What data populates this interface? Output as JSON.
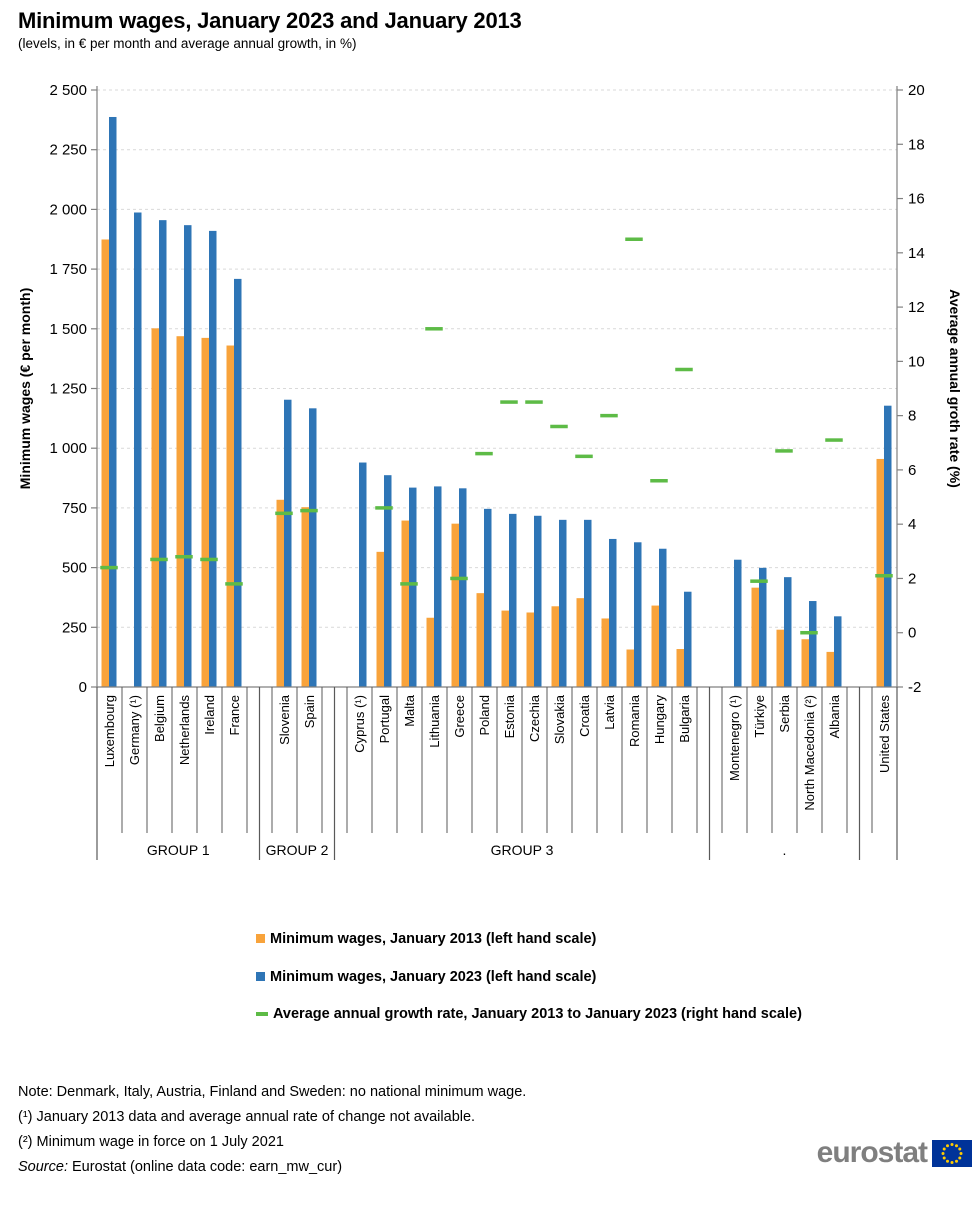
{
  "header": {
    "title": "Minimum wages, January 2023 and January 2013",
    "subtitle": "(levels, in € per month and average annual growth, in %)"
  },
  "chart_data": {
    "type": "bar",
    "title": "Minimum wages, January 2023 and January 2013",
    "left_axis": {
      "label": "Minimum wages (€ per month)",
      "min": 0,
      "max": 2500,
      "step": 250,
      "tick_labels": [
        "0",
        "250",
        "500",
        "750",
        "1 000",
        "1 250",
        "1 500",
        "1 750",
        "2 000",
        "2 250",
        "2 500"
      ]
    },
    "right_axis": {
      "label": "Average annual groth rate (%)",
      "min": -2,
      "max": 20,
      "step": 2
    },
    "grid": "dashed",
    "legend_position": "bottom",
    "categories": [
      "Luxembourg",
      "Germany (¹)",
      "Belgium",
      "Netherlands",
      "Ireland",
      "France",
      "Slovenia",
      "Spain",
      "Cyprus (¹)",
      "Portugal",
      "Malta",
      "Lithuania",
      "Greece",
      "Poland",
      "Estonia",
      "Czechia",
      "Slovakia",
      "Croatia",
      "Latvia",
      "Romania",
      "Hungary",
      "Bulgaria",
      "Montenegro (¹)",
      "Türkiye",
      "Serbia",
      "North Macedonia (²)",
      "Albania",
      "United States"
    ],
    "group_of_category": [
      0,
      0,
      0,
      0,
      0,
      0,
      1,
      1,
      2,
      2,
      2,
      2,
      2,
      2,
      2,
      2,
      2,
      2,
      2,
      2,
      2,
      2,
      3,
      3,
      3,
      3,
      3,
      4
    ],
    "group_labels": [
      "GROUP 1",
      "GROUP 2",
      "GROUP 3",
      ".",
      ""
    ],
    "gaps_before_category_index": [
      6,
      8,
      22,
      27
    ],
    "series": [
      {
        "name": "Minimum wages, January 2013 (left hand scale)",
        "axis": "left",
        "style": "bar",
        "color": "#F8A33B",
        "values": [
          1874,
          null,
          1502,
          1469,
          1462,
          1430,
          784,
          753,
          null,
          566,
          697,
          290,
          684,
          393,
          320,
          312,
          338,
          372,
          287,
          157,
          341,
          159,
          null,
          416,
          240,
          200,
          147,
          955
        ]
      },
      {
        "name": "Minimum wages, January 2023 (left hand scale)",
        "axis": "left",
        "style": "bar",
        "color": "#2E75B6",
        "values": [
          2387,
          1987,
          1955,
          1934,
          1910,
          1709,
          1203,
          1167,
          940,
          887,
          835,
          840,
          832,
          746,
          725,
          717,
          700,
          700,
          620,
          606,
          579,
          399,
          533,
          499,
          460,
          360,
          296,
          1178
        ]
      },
      {
        "name": "Average annual growth rate, January 2013 to January 2023 (right hand scale)",
        "axis": "right",
        "style": "dash-marker",
        "color": "#5DBB46",
        "values": [
          2.4,
          null,
          2.7,
          2.8,
          2.7,
          1.8,
          4.4,
          4.5,
          null,
          4.6,
          1.8,
          11.2,
          2.0,
          6.6,
          8.5,
          8.5,
          7.6,
          6.5,
          8.0,
          14.5,
          5.6,
          9.7,
          null,
          1.9,
          6.7,
          0.0,
          7.1,
          2.1
        ]
      }
    ]
  },
  "legend": {
    "items": [
      {
        "swatch": "orange-square",
        "label": "Minimum wages, January 2013 (left hand scale)"
      },
      {
        "swatch": "blue-square",
        "label": "Minimum wages, January 2023 (left hand scale)"
      },
      {
        "swatch": "green-dash",
        "label": "Average annual growth rate, January 2013 to January 2023 (right hand scale)"
      }
    ]
  },
  "notes": {
    "line1": "Note: Denmark, Italy, Austria, Finland and Sweden: no national minimum wage.",
    "line2": "(¹) January 2013 data and average annual rate of change not available.",
    "line3": "(²) Minimum wage in force on 1 July 2021",
    "source_label": "Source:",
    "source_text": " Eurostat (online data code: earn_mw_cur)"
  },
  "logo": {
    "text": "eurostat"
  },
  "colors": {
    "bar_2013": "#F8A33B",
    "bar_2023": "#2E75B6",
    "growth_marker": "#5DBB46",
    "gridline": "#D9D9D9",
    "axis": "#808080",
    "separator": "#595959",
    "logo_text": "#7F7F7F",
    "flag_blue": "#003399",
    "flag_stars": "#FFCC00"
  }
}
